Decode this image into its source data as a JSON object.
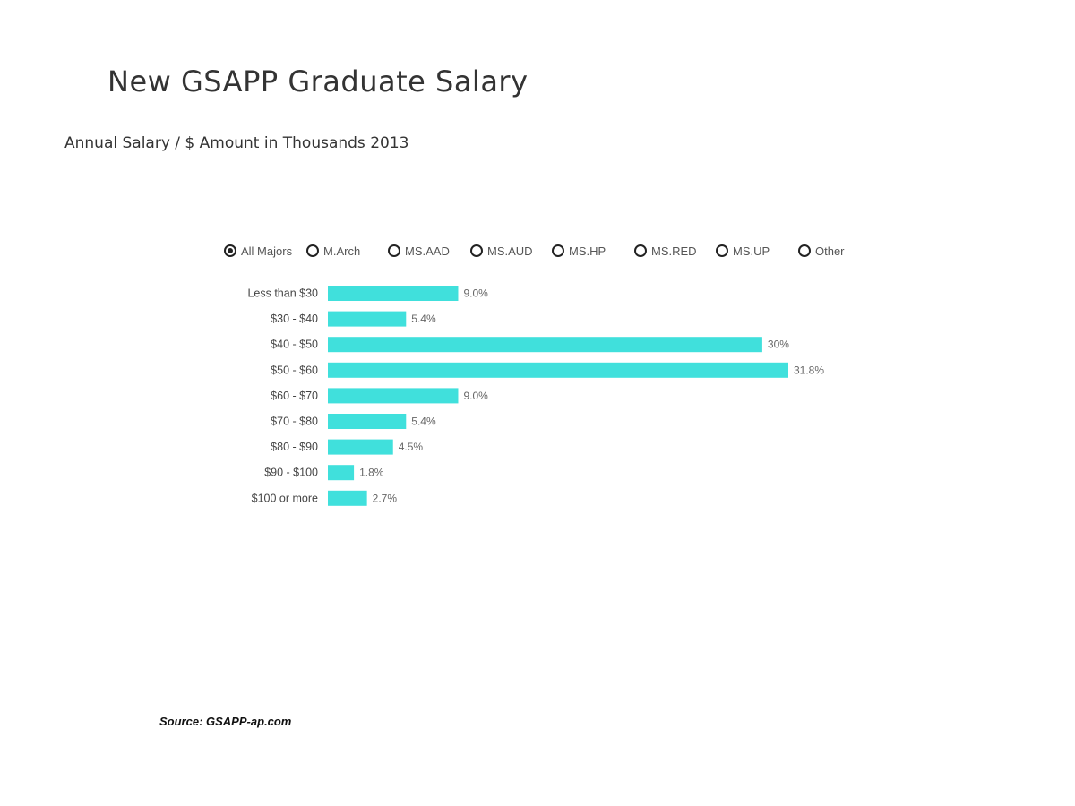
{
  "title": "New GSAPP Graduate Salary",
  "subtitle": "Annual Salary / $ Amount in Thousands 2013",
  "filters": {
    "options": [
      {
        "label": "All Majors",
        "selected": true
      },
      {
        "label": "M.Arch",
        "selected": false
      },
      {
        "label": "MS.AAD",
        "selected": false
      },
      {
        "label": "MS.AUD",
        "selected": false
      },
      {
        "label": "MS.HP",
        "selected": false
      },
      {
        "label": "MS.RED",
        "selected": false
      },
      {
        "label": "MS.UP",
        "selected": false
      },
      {
        "label": "Other",
        "selected": false
      }
    ]
  },
  "chart_data": {
    "type": "bar",
    "orientation": "horizontal",
    "categories": [
      "Less than $30",
      "$30 - $40",
      "$40 - $50",
      "$50 - $60",
      "$60 - $70",
      "$70 - $80",
      "$80 - $90",
      "$90 - $100",
      "$100 or more"
    ],
    "values": [
      9.0,
      5.4,
      30,
      31.8,
      9.0,
      5.4,
      4.5,
      1.8,
      2.7
    ],
    "data_labels": [
      "9.0%",
      "5.4%",
      "30%",
      "31.8%",
      "9.0%",
      "5.4%",
      "4.5%",
      "1.8%",
      "2.7%"
    ],
    "title": "New GSAPP Graduate Salary",
    "subtitle": "Annual Salary / $ Amount in Thousands 2013",
    "xlim": [
      0,
      31.8
    ],
    "grid": false,
    "bar_color": "#40e0dc"
  },
  "source": "Source: GSAPP-ap.com"
}
